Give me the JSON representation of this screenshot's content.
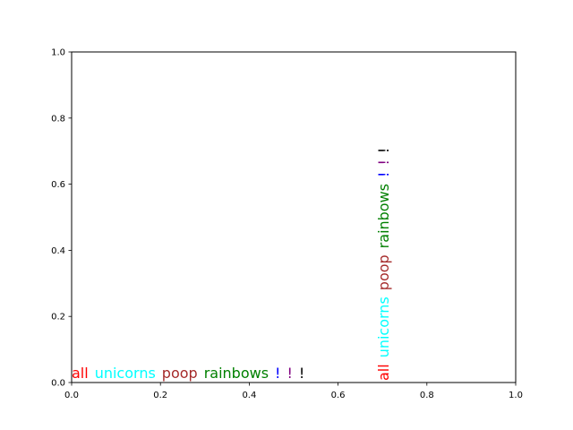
{
  "chart_data": {
    "type": "scatter",
    "title": "",
    "xlabel": "",
    "ylabel": "",
    "xlim": [
      0.0,
      1.0
    ],
    "ylim": [
      0.0,
      1.0
    ],
    "grid": false,
    "x_ticks": [
      "0.0",
      "0.2",
      "0.4",
      "0.6",
      "0.8",
      "1.0"
    ],
    "y_ticks": [
      "0.0",
      "0.2",
      "0.4",
      "0.6",
      "0.8",
      "1.0"
    ],
    "annotations": [
      {
        "anchor": [
          0.0,
          0.0
        ],
        "orientation": "horizontal",
        "words": [
          {
            "text": "all",
            "color": "#ff0000"
          },
          {
            "text": "unicorns",
            "color": "#00ffff"
          },
          {
            "text": "poop",
            "color": "#a52a2a"
          },
          {
            "text": "rainbows",
            "color": "#008000"
          },
          {
            "text": "!",
            "color": "#0000ff"
          },
          {
            "text": "!",
            "color": "#800080"
          },
          {
            "text": "!",
            "color": "#000000"
          }
        ]
      },
      {
        "anchor": [
          0.7,
          0.0
        ],
        "orientation": "vertical",
        "words": [
          {
            "text": "all",
            "color": "#ff0000"
          },
          {
            "text": "unicorns",
            "color": "#00ffff"
          },
          {
            "text": "poop",
            "color": "#a52a2a"
          },
          {
            "text": "rainbows",
            "color": "#008000"
          },
          {
            "text": "!",
            "color": "#0000ff"
          },
          {
            "text": "!",
            "color": "#800080"
          },
          {
            "text": "!",
            "color": "#000000"
          }
        ]
      }
    ]
  }
}
